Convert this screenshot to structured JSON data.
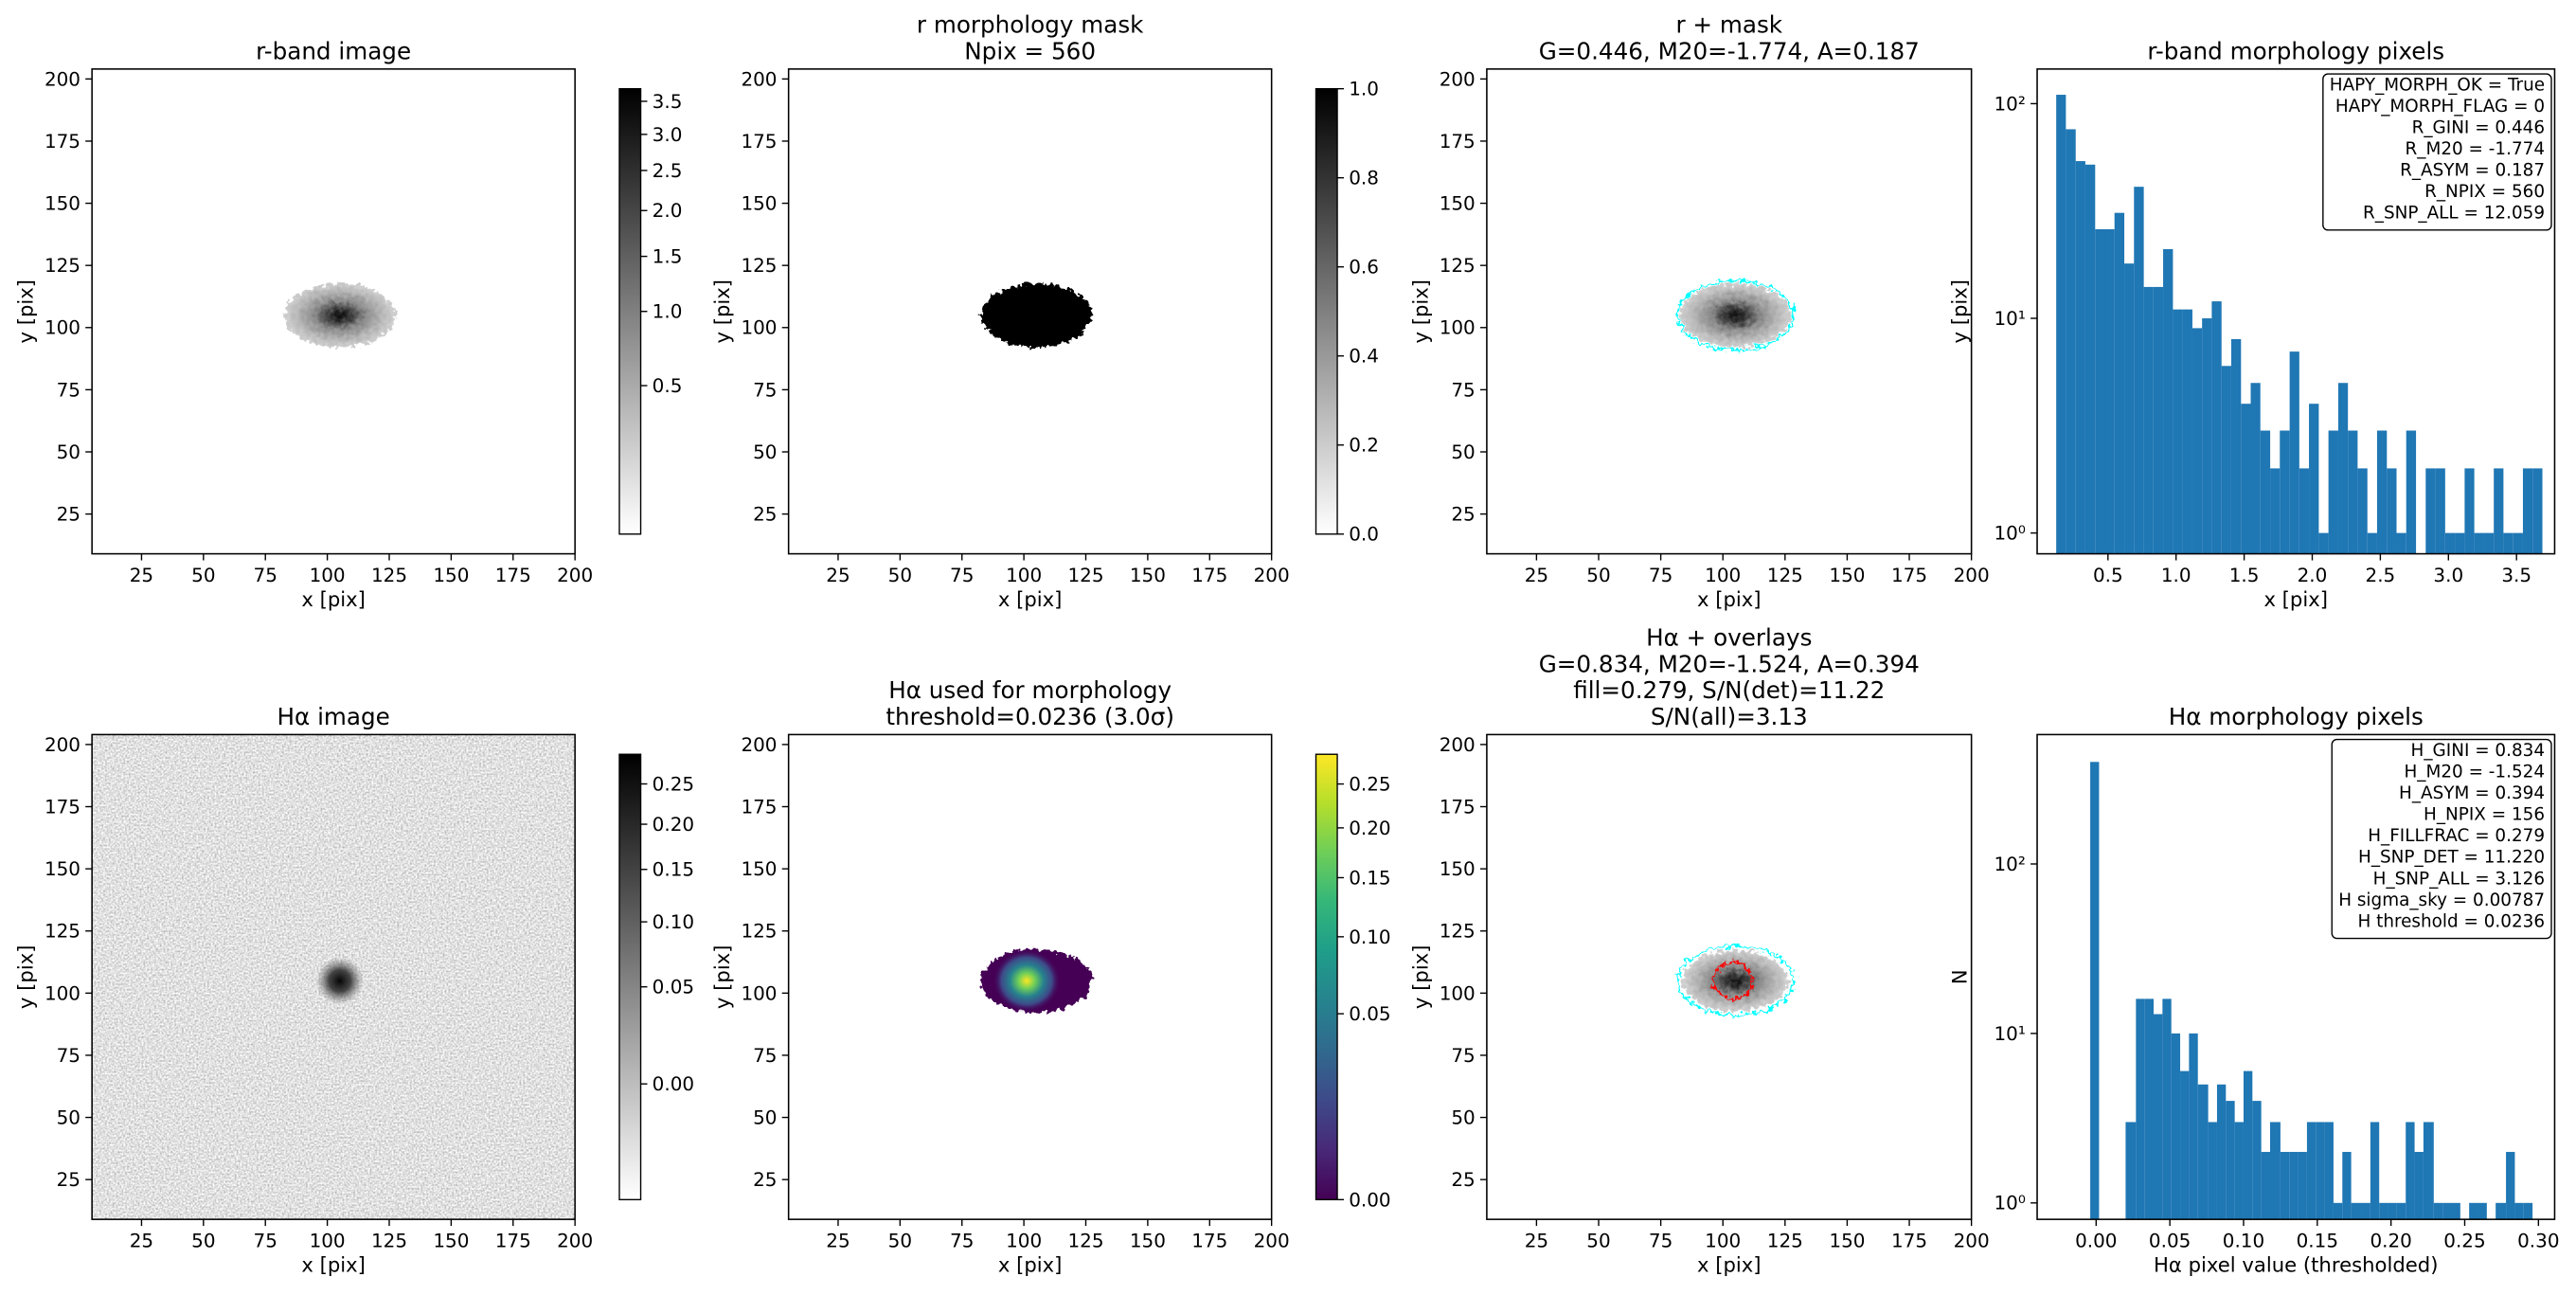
{
  "chart_data": [
    {
      "type": "image",
      "title": [
        "r-band image"
      ],
      "xlabel": "x [pix]",
      "ylabel": "y [pix]",
      "cmap": "gray_r",
      "xlim": [
        5,
        200
      ],
      "ylim": [
        9,
        204
      ],
      "xticks": [
        25,
        50,
        75,
        100,
        125,
        150,
        175,
        200
      ],
      "yticks": [
        25,
        50,
        75,
        100,
        125,
        150,
        175,
        200
      ],
      "colorbar": {
        "cmap": "gray_r",
        "scale": "sqrt",
        "clim": [
          0.1,
          3.7
        ],
        "ticks": [
          0.5,
          {
            "value": 1,
            "label": "1.0"
          },
          1.5,
          {
            "value": 2,
            "label": "2.0"
          },
          2.5,
          {
            "value": 3,
            "label": "3.0"
          },
          3.5
        ]
      }
    },
    {
      "type": "image",
      "title": [
        "r morphology mask",
        "Npix = 560"
      ],
      "xlabel": "x [pix]",
      "ylabel": "y [pix]",
      "cmap": "gray_r",
      "xlim": [
        5,
        200
      ],
      "ylim": [
        9,
        204
      ],
      "xticks": [
        25,
        50,
        75,
        100,
        125,
        150,
        175,
        200
      ],
      "yticks": [
        25,
        50,
        75,
        100,
        125,
        150,
        175,
        200
      ],
      "colorbar": {
        "cmap": "gray_r",
        "scale": "linear",
        "clim": [
          0,
          1
        ],
        "ticks": [
          {
            "value": 0,
            "label": "0.0"
          },
          0.2,
          0.4,
          0.6,
          0.8,
          {
            "value": 1,
            "label": "1.0"
          }
        ]
      }
    },
    {
      "type": "image",
      "title": [
        "r + mask",
        "G=0.446, M20=-1.774, A=0.187"
      ],
      "xlabel": "x [pix]",
      "ylabel": "y [pix]",
      "cmap": "gray_r",
      "contour_colors": [
        "cyan"
      ],
      "xlim": [
        5,
        200
      ],
      "ylim": [
        9,
        204
      ],
      "xticks": [
        25,
        50,
        75,
        100,
        125,
        150,
        175,
        200
      ],
      "yticks": [
        25,
        50,
        75,
        100,
        125,
        150,
        175,
        200
      ]
    },
    {
      "type": "histogram",
      "title": [
        "r-band morphology pixels"
      ],
      "xlabel": "x [pix]",
      "ylabel": "y [pix]",
      "color": "#1f77b4",
      "log_y": true,
      "xlim": [
        -0.02,
        3.78
      ],
      "ylim": [
        0.8,
        145
      ],
      "xticks": [
        0.5,
        {
          "value": 1,
          "label": "1.0"
        },
        1.5,
        {
          "value": 2,
          "label": "2.0"
        },
        2.5,
        {
          "value": 3,
          "label": "3.0"
        },
        3.5
      ],
      "yticks": [
        {
          "value": 1,
          "label": "10⁰"
        },
        {
          "value": 10,
          "label": "10¹"
        },
        {
          "value": 100,
          "label": "10²"
        }
      ],
      "bins": [
        0.12,
        0.191,
        0.263,
        0.334,
        0.406,
        0.477,
        0.548,
        0.62,
        0.691,
        0.763,
        0.834,
        0.905,
        0.977,
        1.048,
        1.12,
        1.191,
        1.262,
        1.334,
        1.405,
        1.477,
        1.548,
        1.619,
        1.691,
        1.762,
        1.834,
        1.905,
        1.976,
        2.048,
        2.119,
        2.191,
        2.262,
        2.333,
        2.405,
        2.476,
        2.548,
        2.619,
        2.69,
        2.762,
        2.833,
        2.905,
        2.976,
        3.047,
        3.119,
        3.19,
        3.262,
        3.333,
        3.404,
        3.476,
        3.547,
        3.619,
        3.69
      ],
      "values": [
        110,
        76,
        54,
        52,
        26,
        26,
        31,
        18,
        41,
        14,
        14,
        21,
        11,
        11,
        9,
        10,
        12,
        6,
        8,
        4,
        5,
        3,
        2,
        3,
        7,
        2,
        4,
        1,
        3,
        5,
        3,
        2,
        1,
        3,
        2,
        1,
        3,
        0,
        2,
        2,
        1,
        1,
        2,
        1,
        1,
        2,
        1,
        1,
        2,
        2
      ],
      "annotation": [
        "HAPY_MORPH_OK = True",
        "HAPY_MORPH_FLAG = 0",
        "R_GINI = 0.446",
        "R_M20 = -1.774",
        "R_ASYM = 0.187",
        "R_NPIX = 560",
        "R_SNP_ALL = 12.059"
      ]
    },
    {
      "type": "image",
      "title": [
        "Hα image"
      ],
      "xlabel": "x [pix]",
      "ylabel": "y [pix]",
      "cmap": "gray_r",
      "xlim": [
        5,
        200
      ],
      "ylim": [
        9,
        204
      ],
      "xticks": [
        25,
        50,
        75,
        100,
        125,
        150,
        175,
        200
      ],
      "yticks": [
        25,
        50,
        75,
        100,
        125,
        150,
        175,
        200
      ],
      "colorbar": {
        "cmap": "gray_r",
        "scale": "sqrt",
        "clim": [
          -0.021,
          0.29
        ],
        "ticks": [
          {
            "value": 0,
            "label": "0.00"
          },
          0.05,
          {
            "value": 0.1,
            "label": "0.10"
          },
          0.15,
          {
            "value": 0.2,
            "label": "0.20"
          },
          0.25
        ]
      }
    },
    {
      "type": "image",
      "title": [
        "Hα used for morphology",
        "threshold=0.0236 (3.0σ)"
      ],
      "xlabel": "x [pix]",
      "ylabel": "y [pix]",
      "cmap": "viridis",
      "xlim": [
        5,
        200
      ],
      "ylim": [
        9,
        204
      ],
      "xticks": [
        25,
        50,
        75,
        100,
        125,
        150,
        175,
        200
      ],
      "yticks": [
        25,
        50,
        75,
        100,
        125,
        150,
        175,
        200
      ],
      "colorbar": {
        "cmap": "viridis",
        "scale": "sqrt",
        "clim": [
          0,
          0.287
        ],
        "ticks": [
          {
            "value": 0,
            "label": "0.00"
          },
          0.05,
          {
            "value": 0.1,
            "label": "0.10"
          },
          0.15,
          {
            "value": 0.2,
            "label": "0.20"
          },
          0.25
        ]
      }
    },
    {
      "type": "image",
      "title": [
        "Hα + overlays",
        "G=0.834, M20=-1.524, A=0.394",
        "fill=0.279, S/N(det)=11.22",
        "S/N(all)=3.13"
      ],
      "xlabel": "x [pix]",
      "ylabel": "y [pix]",
      "cmap": "gray_r",
      "contour_colors": [
        "cyan",
        "red"
      ],
      "xlim": [
        5,
        200
      ],
      "ylim": [
        9,
        204
      ],
      "xticks": [
        25,
        50,
        75,
        100,
        125,
        150,
        175,
        200
      ],
      "yticks": [
        25,
        50,
        75,
        100,
        125,
        150,
        175,
        200
      ]
    },
    {
      "type": "histogram",
      "title": [
        "Hα morphology pixels"
      ],
      "xlabel": "Hα pixel value (thresholded)",
      "ylabel": "N",
      "color": "#1f77b4",
      "log_y": true,
      "xlim": [
        -0.04,
        0.311
      ],
      "ylim": [
        0.8,
        580
      ],
      "xticks": [
        {
          "value": 0,
          "label": "0.00"
        },
        0.05,
        {
          "value": 0.1,
          "label": "0.10"
        },
        0.15,
        {
          "value": 0.2,
          "label": "0.20"
        },
        0.25,
        {
          "value": 0.3,
          "label": "0.30"
        }
      ],
      "yticks": [
        {
          "value": 1,
          "label": "10⁰"
        },
        {
          "value": 10,
          "label": "10¹"
        },
        {
          "value": 100,
          "label": "10²"
        }
      ],
      "bins": [
        -0.004,
        0.002,
        0.008,
        0.014,
        0.02,
        0.027,
        0.033,
        0.039,
        0.045,
        0.051,
        0.057,
        0.063,
        0.069,
        0.076,
        0.082,
        0.088,
        0.094,
        0.1,
        0.106,
        0.112,
        0.118,
        0.125,
        0.131,
        0.137,
        0.143,
        0.149,
        0.155,
        0.161,
        0.167,
        0.173,
        0.18,
        0.186,
        0.192,
        0.198,
        0.204,
        0.21,
        0.216,
        0.222,
        0.229,
        0.235,
        0.241,
        0.247,
        0.253,
        0.259,
        0.265,
        0.271,
        0.278,
        0.284,
        0.29,
        0.296,
        0.302
      ],
      "values": [
        400,
        0,
        0,
        0,
        3,
        16,
        16,
        13,
        16,
        10,
        6,
        10,
        5,
        3,
        5,
        4,
        3,
        6,
        4,
        2,
        3,
        2,
        2,
        2,
        3,
        3,
        3,
        1,
        2,
        1,
        1,
        3,
        1,
        1,
        1,
        3,
        2,
        3,
        1,
        1,
        1,
        0,
        1,
        1,
        0,
        1,
        2,
        1,
        1,
        0
      ],
      "annotation": [
        "H_GINI = 0.834",
        "H_M20 = -1.524",
        "H_ASYM = 0.394",
        "H_NPIX = 156",
        "H_FILLFRAC = 0.279",
        "H_SNP_DET = 11.220",
        "H_SNP_ALL = 3.126",
        "H sigma_sky = 0.00787",
        "H threshold = 0.0236"
      ]
    }
  ]
}
